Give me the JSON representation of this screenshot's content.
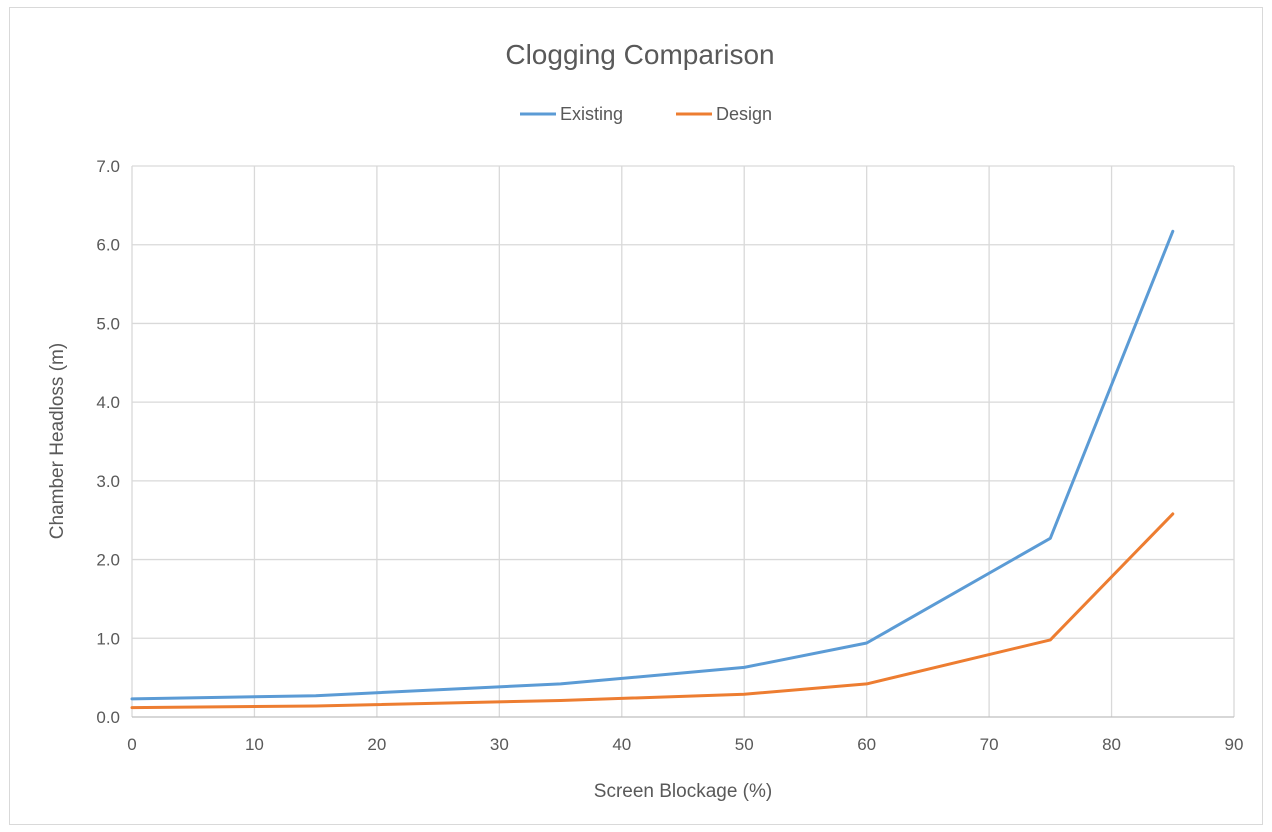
{
  "chart_data": {
    "type": "line",
    "title": "Clogging Comparison",
    "xlabel": "Screen Blockage (%)",
    "ylabel": "Chamber Headloss (m)",
    "xlim": [
      0,
      90
    ],
    "ylim": [
      0,
      7
    ],
    "x_ticks": [
      0,
      10,
      20,
      30,
      40,
      50,
      60,
      70,
      80,
      90
    ],
    "x_tick_labels": [
      "0",
      "10",
      "20",
      "30",
      "40",
      "50",
      "60",
      "70",
      "80",
      "90"
    ],
    "y_ticks": [
      0,
      1,
      2,
      3,
      4,
      5,
      6,
      7
    ],
    "y_tick_labels": [
      "0.0",
      "1.0",
      "2.0",
      "3.0",
      "4.0",
      "5.0",
      "6.0",
      "7.0"
    ],
    "grid": true,
    "legend_position": "top-center",
    "x": [
      0,
      15,
      35,
      50,
      60,
      75,
      85
    ],
    "series": [
      {
        "name": "Existing",
        "color": "#5b9bd5",
        "values": [
          0.23,
          0.27,
          0.42,
          0.63,
          0.94,
          2.27,
          6.17
        ]
      },
      {
        "name": "Design",
        "color": "#ed7d31",
        "values": [
          0.12,
          0.14,
          0.21,
          0.29,
          0.42,
          0.98,
          2.58
        ]
      }
    ]
  }
}
